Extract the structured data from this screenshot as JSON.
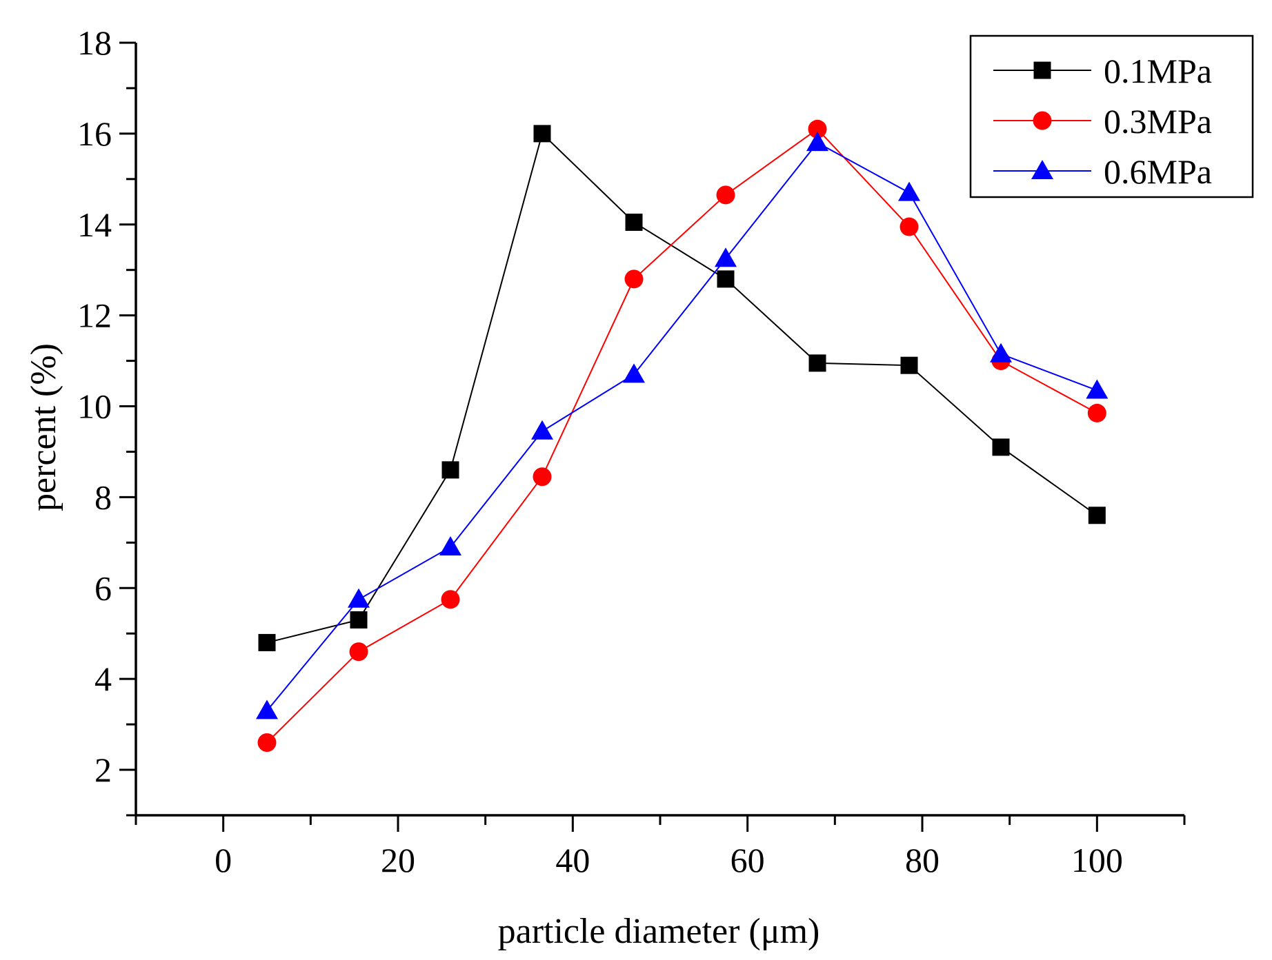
{
  "chart_data": {
    "type": "line",
    "title": "",
    "xlabel": "particle diameter (μm)",
    "ylabel": "percent (%)",
    "xlim": [
      -10,
      110
    ],
    "ylim": [
      1,
      18
    ],
    "x_ticks": [
      0,
      20,
      40,
      60,
      80,
      100
    ],
    "x_tick_labels": [
      "0",
      "20",
      "40",
      "60",
      "80",
      "100"
    ],
    "y_ticks": [
      2,
      4,
      6,
      8,
      10,
      12,
      14,
      16,
      18
    ],
    "y_tick_labels": [
      "2",
      "4",
      "6",
      "8",
      "10",
      "12",
      "14",
      "16",
      "18"
    ],
    "grid": false,
    "legend_position": "top-right",
    "x": [
      5,
      15.5,
      26,
      36.5,
      47,
      57.5,
      68,
      78.5,
      89,
      100
    ],
    "series": [
      {
        "name": "0.1MPa",
        "color": "#000000",
        "marker": "square",
        "values": [
          4.8,
          5.3,
          8.6,
          16.0,
          14.05,
          12.8,
          10.95,
          10.9,
          9.1,
          7.6
        ]
      },
      {
        "name": "0.3MPa",
        "color": "#ff0000",
        "marker": "circle",
        "values": [
          2.6,
          4.6,
          5.75,
          8.45,
          12.8,
          14.65,
          16.1,
          13.95,
          11.0,
          9.85
        ]
      },
      {
        "name": "0.6MPa",
        "color": "#0000ff",
        "marker": "triangle",
        "values": [
          3.3,
          5.75,
          6.9,
          9.45,
          10.7,
          13.25,
          15.8,
          14.7,
          11.15,
          10.35
        ]
      }
    ]
  }
}
